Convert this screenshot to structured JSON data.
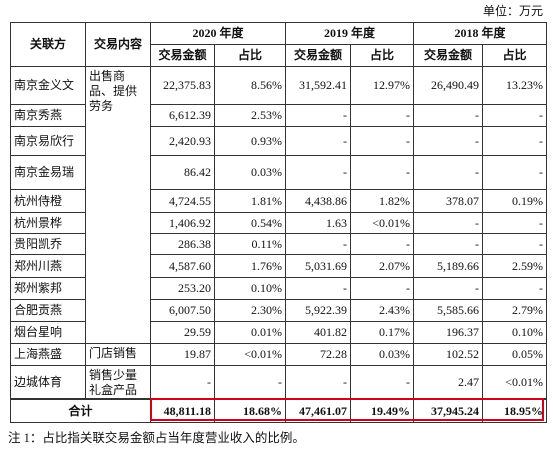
{
  "unit": "单位：万元",
  "columns": [
    "关联方",
    "交易内容"
  ],
  "years": [
    "2020 年度",
    "2019 年度",
    "2018 年度"
  ],
  "sub_headers": [
    "交易金额",
    "占比"
  ],
  "groups": [
    {
      "content": "出售商品、提供劳务",
      "rows": [
        [
          "南京金义文",
          "22,375.83",
          "8.56%",
          "31,592.41",
          "12.97%",
          "26,490.49",
          "13.23%"
        ],
        [
          "南京秀燕",
          "6,612.39",
          "2.53%",
          "-",
          "-",
          "-",
          "-"
        ],
        [
          "南京易欣行",
          "2,420.93",
          "0.93%",
          "-",
          "-",
          "-",
          "-"
        ],
        [
          "南京金易瑞",
          "86.42",
          "0.03%",
          "-",
          "-",
          "-",
          "-"
        ],
        [
          "杭州侍橙",
          "4,724.55",
          "1.81%",
          "4,438.86",
          "1.82%",
          "378.07",
          "0.19%"
        ],
        [
          "杭州景桦",
          "1,406.92",
          "0.54%",
          "1.63",
          "<0.01%",
          "-",
          "-"
        ],
        [
          "贵阳凯乔",
          "286.38",
          "0.11%",
          "-",
          "-",
          "-",
          "-"
        ],
        [
          "郑州川燕",
          "4,587.60",
          "1.76%",
          "5,031.69",
          "2.07%",
          "5,189.66",
          "2.59%"
        ],
        [
          "郑州紫邦",
          "253.20",
          "0.10%",
          "-",
          "-",
          "-",
          "-"
        ],
        [
          "合肥贡燕",
          "6,007.50",
          "2.30%",
          "5,922.39",
          "2.43%",
          "5,585.66",
          "2.79%"
        ],
        [
          "烟台星响",
          "29.59",
          "0.01%",
          "401.82",
          "0.17%",
          "196.37",
          "0.10%"
        ]
      ]
    },
    {
      "content": "门店销售",
      "rows": [
        [
          "上海燕盛",
          "19.87",
          "<0.01%",
          "72.28",
          "0.03%",
          "102.52",
          "0.05%"
        ]
      ]
    },
    {
      "content": "销售少量礼盒产品",
      "rows": [
        [
          "边城体育",
          "-",
          "-",
          "-",
          "-",
          "2.47",
          "<0.01%"
        ]
      ]
    }
  ],
  "total": [
    "合计",
    "48,811.18",
    "18.68%",
    "47,461.07",
    "19.49%",
    "37,945.24",
    "18.95%"
  ],
  "note": "注 1：占比指关联交易金额占当年度营业收入的比例。"
}
